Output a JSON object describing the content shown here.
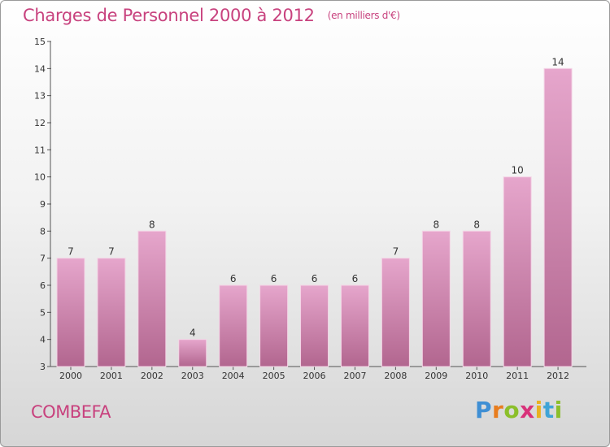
{
  "header": {
    "title": "Charges de Personnel 2000 à 2012",
    "subtitle": "(en milliers d'€)"
  },
  "commune": "COMBEFA",
  "logo": {
    "letters": [
      "P",
      "r",
      "o",
      "x",
      "i",
      "t",
      "i"
    ]
  },
  "colors": {
    "title": "#c8427e",
    "bar_top": "#e6a6cc",
    "bar_bottom": "#b2668f"
  },
  "chart_data": {
    "type": "bar",
    "title": "Charges de Personnel 2000 à 2012",
    "subtitle": "(en milliers d'€)",
    "categories": [
      "2000",
      "2001",
      "2002",
      "2003",
      "2004",
      "2005",
      "2006",
      "2007",
      "2008",
      "2009",
      "2010",
      "2011",
      "2012"
    ],
    "values": [
      7,
      7,
      8,
      4,
      6,
      6,
      6,
      6,
      7,
      8,
      8,
      10,
      14
    ],
    "ylim": [
      3,
      15
    ],
    "yticks": [
      3,
      4,
      5,
      6,
      7,
      8,
      9,
      10,
      11,
      12,
      13,
      14,
      15
    ],
    "grid": false,
    "legend": "none"
  }
}
